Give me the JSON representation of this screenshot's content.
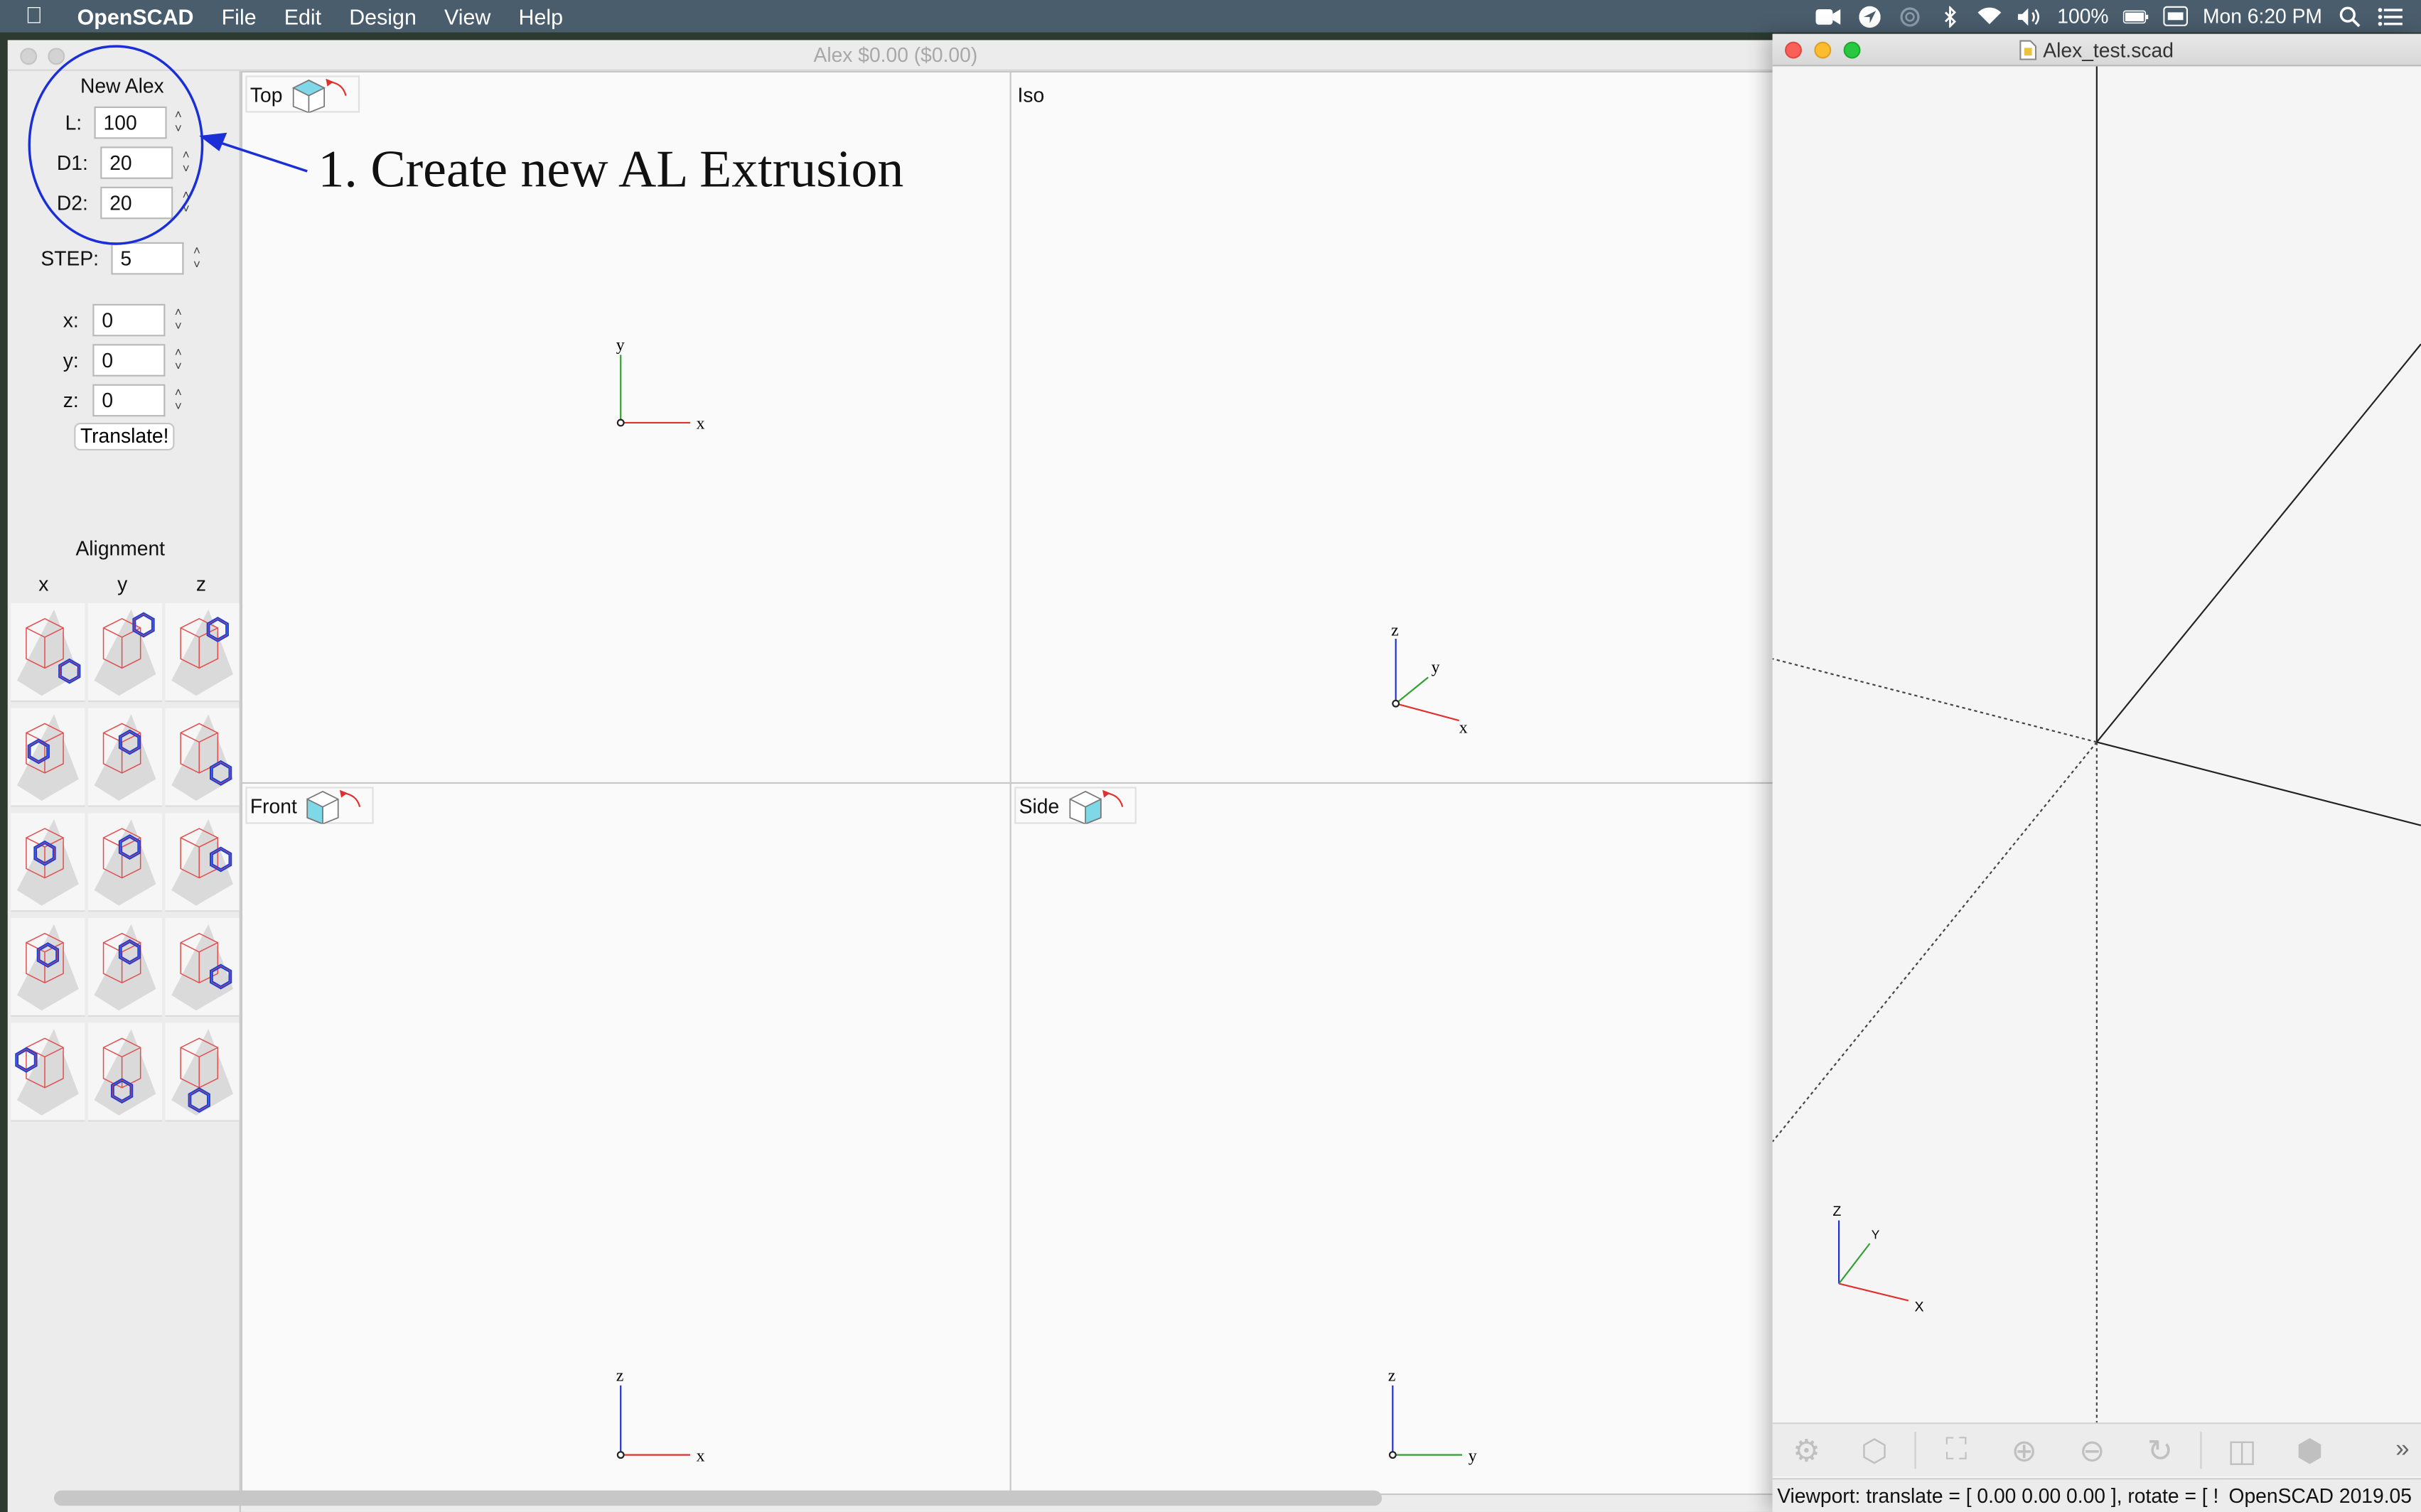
{
  "menubar": {
    "app_name": "OpenSCAD",
    "menus": [
      "File",
      "Edit",
      "Design",
      "View",
      "Help"
    ],
    "battery": "100%",
    "clock": "Mon 6:20 PM"
  },
  "alex_window": {
    "title": "Alex  $0.00 ($0.00)",
    "panel": {
      "header": "New Alex",
      "fields": [
        {
          "label": "L:",
          "value": "100"
        },
        {
          "label": "D1:",
          "value": "20"
        },
        {
          "label": "D2:",
          "value": "20"
        }
      ],
      "step": {
        "label": "STEP:",
        "value": "5"
      },
      "translate_fields": [
        {
          "label": "x:",
          "value": "0"
        },
        {
          "label": "y:",
          "value": "0"
        },
        {
          "label": "z:",
          "value": "0"
        }
      ],
      "translate_button": "Translate!",
      "alignment_title": "Alignment",
      "alignment_columns": [
        "x",
        "y",
        "z"
      ]
    },
    "viewports": {
      "top": {
        "label": "Top",
        "axes": [
          "x",
          "y"
        ]
      },
      "iso": {
        "label": "Iso",
        "axes": [
          "x",
          "y",
          "z"
        ]
      },
      "front": {
        "label": "Front",
        "axes": [
          "x",
          "z"
        ]
      },
      "side": {
        "label": "Side",
        "axes": [
          "y",
          "z"
        ]
      }
    },
    "annotation": "1. Create new AL Extrusion",
    "annotation_color": "#1a2fd6"
  },
  "scad_window": {
    "title": "Alex_test.scad",
    "axes": [
      "x",
      "y",
      "z"
    ],
    "status_text": "Viewport: translate = [ 0.00 0.00 0.00 ], rotate = [ !",
    "version": "OpenSCAD 2019.05"
  },
  "colors": {
    "axis_x": "#e03030",
    "axis_y": "#30a030",
    "axis_z": "#2030d0",
    "highlight_blue": "#1b3fd8",
    "extrusion_red": "#e05050"
  }
}
